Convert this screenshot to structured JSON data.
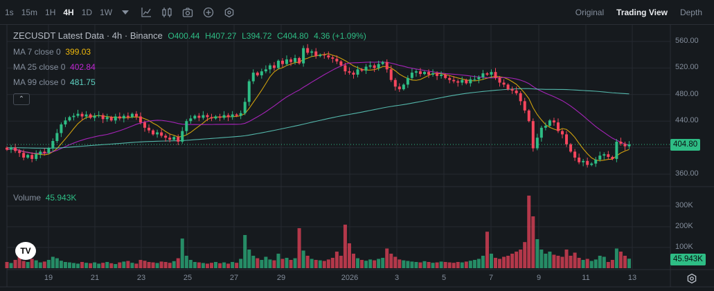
{
  "toolbar": {
    "timeframes": [
      "1s",
      "15m",
      "1H",
      "4H",
      "1D",
      "1W"
    ],
    "active_timeframe": "4H",
    "icons": [
      "caret-down-icon",
      "indicator-icon",
      "candle-type-icon",
      "camera-icon",
      "plus-circle-icon",
      "settings-hex-icon"
    ],
    "views": [
      "Original",
      "Trading View",
      "Depth"
    ],
    "active_view": "Trading View"
  },
  "legend": {
    "title": "ZECUSDT Latest Data · 4h · Binance",
    "open": "O400.44",
    "high": "H407.27",
    "low": "L394.72",
    "close": "C404.80",
    "change": "4.36 (+1.09%)",
    "ma7": {
      "label": "MA 7 close 0",
      "value": "399.03",
      "color": "#f0b90b"
    },
    "ma25": {
      "label": "MA 25 close 0",
      "value": "402.84",
      "color": "#c026d3"
    },
    "ma99": {
      "label": "MA 99 close 0",
      "value": "481.75",
      "color": "#5fd4c4"
    },
    "collapse": "⌃"
  },
  "volume": {
    "label": "Volume",
    "value": "45.943K"
  },
  "colors": {
    "up": "#2ebd85",
    "down": "#f6465d"
  },
  "chart_data": {
    "type": "candlestick",
    "price_ticks": [
      "560.00",
      "520.00",
      "480.00",
      "440.00",
      "360.00"
    ],
    "price_tick_values": [
      560,
      520,
      480,
      440,
      360
    ],
    "volume_ticks": [
      "300K",
      "200K",
      "100K"
    ],
    "volume_tick_values": [
      300,
      200,
      100
    ],
    "time_ticks": [
      "19",
      "21",
      "23",
      "25",
      "27",
      "29",
      "2026",
      "3",
      "5",
      "7",
      "9",
      "11",
      "13"
    ],
    "last_price": "404.80",
    "last_price_value": 404.8,
    "last_volume": "45.943K",
    "closes": [
      397,
      400,
      395,
      392,
      385,
      389,
      383,
      390,
      394,
      392,
      399,
      410,
      422,
      435,
      441,
      446,
      448,
      451,
      447,
      450,
      445,
      448,
      449,
      443,
      446,
      441,
      447,
      444,
      448,
      446,
      451,
      447,
      438,
      430,
      426,
      420,
      423,
      418,
      415,
      412,
      416,
      409,
      425,
      440,
      444,
      448,
      445,
      449,
      446,
      444,
      447,
      445,
      449,
      446,
      450,
      448,
      452,
      469,
      500,
      513,
      509,
      515,
      518,
      524,
      520,
      531,
      526,
      533,
      529,
      535,
      527,
      550,
      543,
      545,
      538,
      540,
      539,
      536,
      534,
      530,
      524,
      515,
      513,
      510,
      518,
      516,
      522,
      524,
      520,
      526,
      529,
      518,
      502,
      492,
      488,
      495,
      505,
      513,
      515,
      511,
      514,
      510,
      512,
      508,
      510,
      505,
      502,
      500,
      498,
      502,
      497,
      503,
      503,
      506,
      512,
      510,
      514,
      505,
      498,
      495,
      488,
      486,
      482,
      470,
      456,
      440,
      399,
      415,
      430,
      433,
      441,
      438,
      425,
      420,
      405,
      394,
      385,
      378,
      380,
      374,
      376,
      382,
      388,
      390,
      386,
      383,
      409,
      406,
      402,
      404.8
    ],
    "first_open": 400,
    "volumes_k": [
      30,
      25,
      40,
      110,
      35,
      30,
      45,
      38,
      28,
      32,
      40,
      55,
      48,
      36,
      30,
      28,
      25,
      22,
      30,
      26,
      24,
      28,
      22,
      26,
      30,
      24,
      20,
      28,
      32,
      35,
      26,
      22,
      40,
      36,
      30,
      28,
      25,
      32,
      30,
      26,
      34,
      48,
      143,
      60,
      40,
      30,
      28,
      25,
      22,
      26,
      30,
      24,
      28,
      22,
      30,
      26,
      45,
      160,
      90,
      60,
      48,
      40,
      55,
      42,
      38,
      70,
      45,
      50,
      40,
      48,
      193,
      85,
      60,
      45,
      40,
      38,
      35,
      42,
      50,
      80,
      60,
      210,
      120,
      70,
      48,
      40,
      36,
      42,
      38,
      45,
      50,
      95,
      70,
      55,
      42,
      38,
      35,
      32,
      30,
      28,
      34,
      30,
      26,
      28,
      32,
      30,
      28,
      26,
      30,
      28,
      32,
      36,
      40,
      45,
      60,
      176,
      70,
      50,
      45,
      55,
      60,
      70,
      80,
      90,
      126,
      350,
      250,
      140,
      90,
      70,
      80,
      65,
      60,
      55,
      90,
      60,
      75,
      50,
      40,
      45,
      35,
      42,
      60,
      55,
      30,
      40,
      95,
      80,
      60,
      45.943
    ]
  }
}
